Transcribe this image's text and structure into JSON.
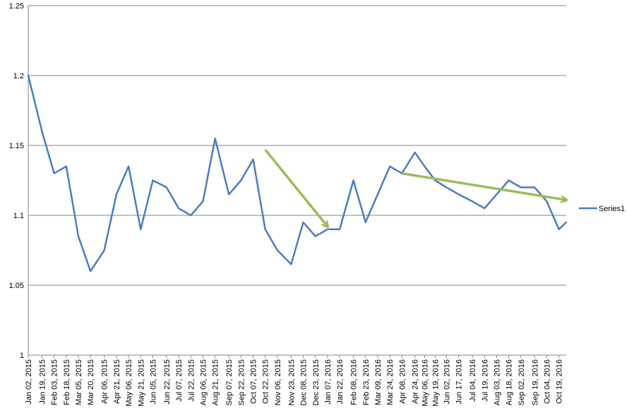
{
  "chart_data": {
    "type": "line",
    "title": "",
    "xlabel": "",
    "ylabel": "",
    "ylim": [
      1,
      1.25
    ],
    "yticks": [
      1,
      1.05,
      1.1,
      1.15,
      1.2,
      1.25
    ],
    "ytick_labels": [
      "1",
      "1.05",
      "1.1",
      "1.15",
      "1.2",
      "1.25"
    ],
    "grid": "horizontal",
    "legend": {
      "position": "right",
      "entries": [
        "Series1"
      ]
    },
    "xtick_labels": [
      "Jan 02, 2015",
      "Jan 19, 2015",
      "Feb 03, 2015",
      "Feb 18, 2015",
      "Mar 05, 2015",
      "Mar 20, 2015",
      "Apr 06, 2015",
      "Apr 21, 2015",
      "May 06, 2015",
      "May 21, 2015",
      "Jun 05, 2015",
      "Jun 22, 2015",
      "Jul 07, 2015",
      "Jul 22, 2015",
      "Aug 06, 2015",
      "Aug 21, 2015",
      "Sep 07, 2015",
      "Sep 22, 2015",
      "Oct 07, 2015",
      "Oct 22, 2015",
      "Nov 06, 2015",
      "Nov 23, 2015",
      "Dec 08, 2015",
      "Dec 23, 2015",
      "Jan 07, 2016",
      "Jan 22, 2016",
      "Feb 08, 2016",
      "Feb 23, 2016",
      "Mar 09, 2016",
      "Mar 24, 2016",
      "Apr 08, 2016",
      "Apr 24, 2016",
      "May 06, 2016",
      "May 19, 2016",
      "Jun 02, 2016",
      "Jun 17, 2016",
      "Jul 04, 2016",
      "Jul 19, 2016",
      "Aug 03, 2016",
      "Aug 18, 2016",
      "Sep 02, 2016",
      "Sep 19, 2016",
      "Oct 04, 2016",
      "Oct 19, 2016"
    ],
    "series": [
      {
        "name": "Series1",
        "color": "#4a7ebb",
        "x": [
          "Jan 02, 2015",
          "Jan 19, 2015",
          "Feb 03, 2015",
          "Feb 18, 2015",
          "Mar 05, 2015",
          "Mar 20, 2015",
          "Apr 06, 2015",
          "Apr 21, 2015",
          "May 06, 2015",
          "May 21, 2015",
          "Jun 05, 2015",
          "Jun 22, 2015",
          "Jul 07, 2015",
          "Jul 22, 2015",
          "Aug 06, 2015",
          "Aug 21, 2015",
          "Sep 07, 2015",
          "Sep 22, 2015",
          "Oct 07, 2015",
          "Oct 22, 2015",
          "Nov 06, 2015",
          "Nov 23, 2015",
          "Dec 08, 2015",
          "Dec 23, 2015",
          "Jan 07, 2016",
          "Jan 22, 2016",
          "Feb 08, 2016",
          "Feb 23, 2016",
          "Mar 09, 2016",
          "Mar 24, 2016",
          "Apr 08, 2016",
          "Apr 24, 2016",
          "May 06, 2016",
          "May 19, 2016",
          "Jun 02, 2016",
          "Jun 17, 2016",
          "Jul 04, 2016",
          "Jul 19, 2016",
          "Aug 03, 2016",
          "Aug 18, 2016",
          "Sep 02, 2016",
          "Sep 19, 2016",
          "Oct 04, 2016",
          "Oct 19, 2016",
          "Oct 28, 2016"
        ],
        "values": [
          1.2,
          1.16,
          1.13,
          1.135,
          1.085,
          1.06,
          1.075,
          1.115,
          1.135,
          1.09,
          1.125,
          1.12,
          1.105,
          1.1,
          1.11,
          1.155,
          1.115,
          1.125,
          1.14,
          1.09,
          1.075,
          1.065,
          1.095,
          1.085,
          1.09,
          1.09,
          1.125,
          1.095,
          1.115,
          1.135,
          1.13,
          1.145,
          1.135,
          1.125,
          1.12,
          1.115,
          1.11,
          1.105,
          1.115,
          1.125,
          1.12,
          1.12,
          1.11,
          1.09,
          1.095
        ]
      }
    ],
    "annotations": [
      {
        "type": "arrow",
        "color": "#9bbb59",
        "from": {
          "x": "Oct 22, 2015",
          "y": 1.147
        },
        "to": {
          "x": "Jan 07, 2016",
          "y": 1.092
        }
      },
      {
        "type": "arrow",
        "color": "#9bbb59",
        "from": {
          "x": "Apr 08, 2016",
          "y": 1.13
        },
        "to": {
          "x": "Oct 28, 2016",
          "y": 1.111
        }
      }
    ]
  }
}
